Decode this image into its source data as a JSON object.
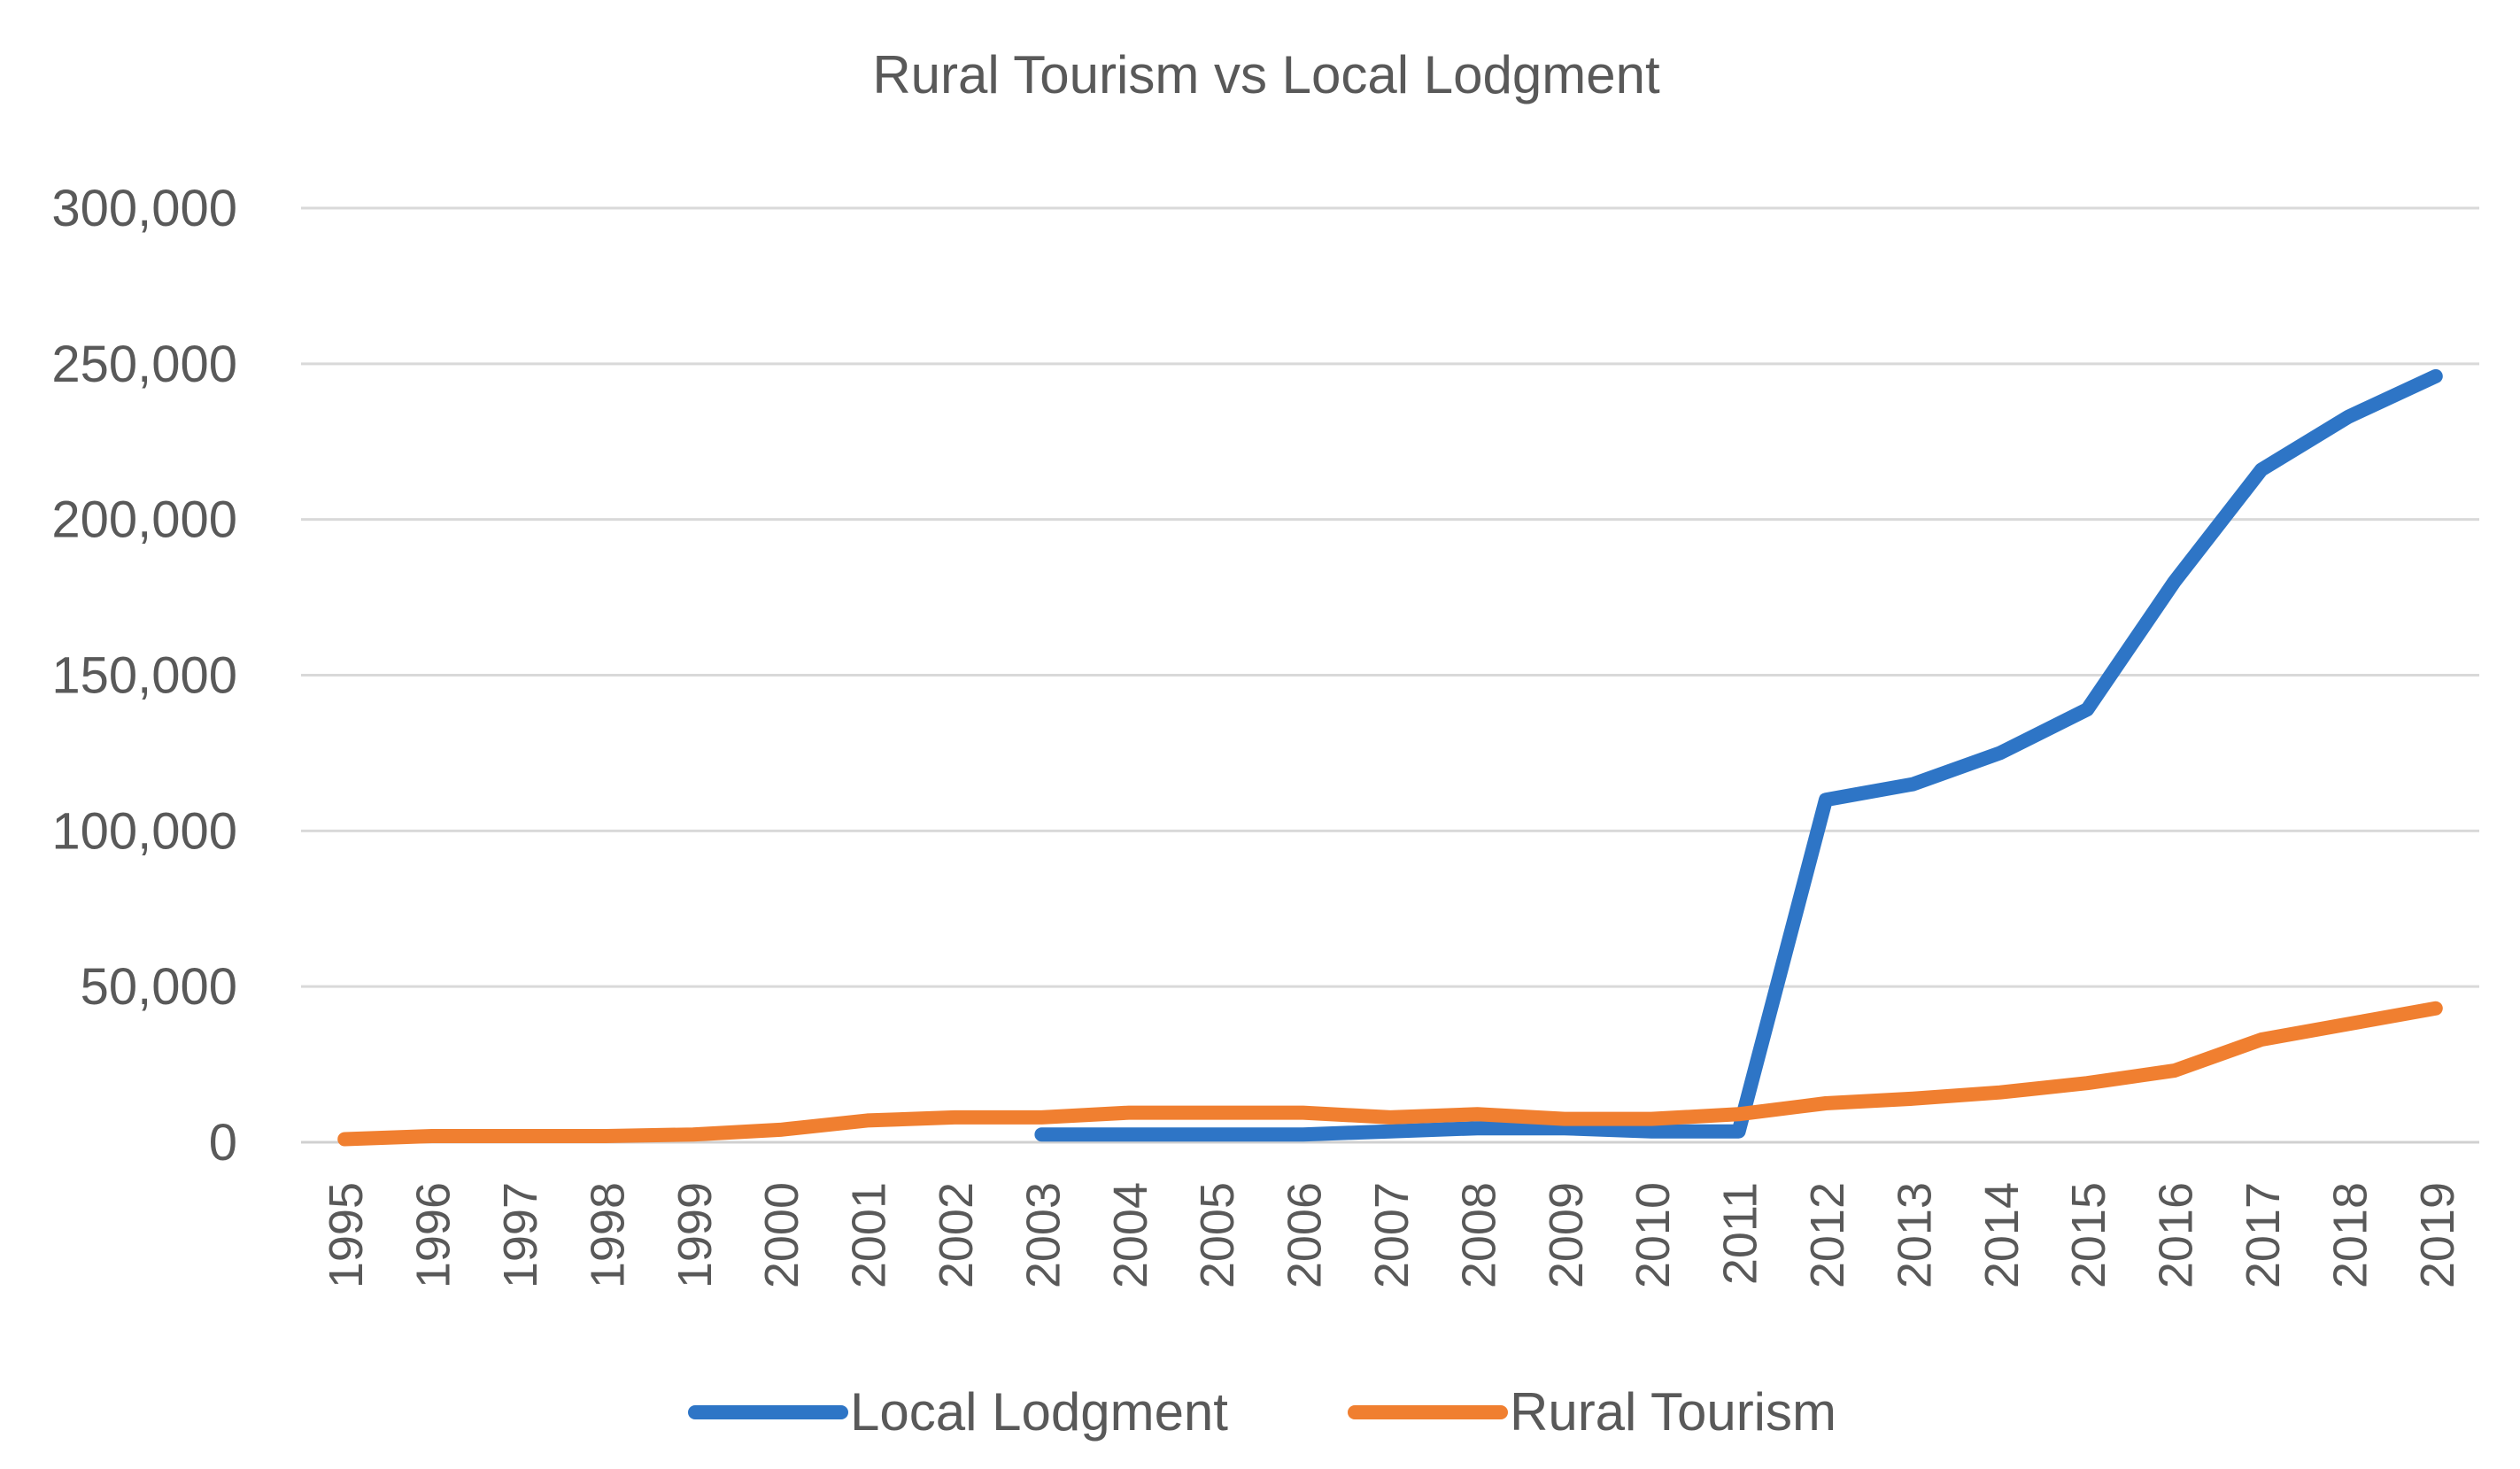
{
  "chart_data": {
    "type": "line",
    "title": "Rural Tourism vs Local Lodgment",
    "xlabel": "",
    "ylabel": "",
    "ylim": [
      0,
      300000
    ],
    "yticks": [
      0,
      50000,
      100000,
      150000,
      200000,
      250000,
      300000
    ],
    "ytick_labels": [
      "0",
      "50,000",
      "100,000",
      "150,000",
      "200,000",
      "250,000",
      "300,000"
    ],
    "grid": true,
    "legend_position": "bottom",
    "categories": [
      "1995",
      "1996",
      "1997",
      "1998",
      "1999",
      "2000",
      "2001",
      "2002",
      "2003",
      "2004",
      "2005",
      "2006",
      "2007",
      "2008",
      "2009",
      "2010",
      "2011",
      "2012",
      "2013",
      "2014",
      "2015",
      "2016",
      "2017",
      "2018",
      "2019"
    ],
    "series": [
      {
        "name": "Local Lodgment",
        "color": "#2e75c6",
        "values": [
          null,
          null,
          null,
          null,
          null,
          null,
          null,
          null,
          2500,
          2500,
          2500,
          2500,
          3500,
          4500,
          4500,
          3500,
          3500,
          110000,
          115000,
          125000,
          139000,
          180000,
          216000,
          233000,
          246000
        ]
      },
      {
        "name": "Rural Tourism",
        "color": "#f07f30",
        "values": [
          1000,
          2000,
          2000,
          2000,
          2500,
          4000,
          7000,
          8000,
          8000,
          9500,
          9500,
          9500,
          8000,
          9000,
          7500,
          7500,
          9000,
          12500,
          14000,
          16000,
          19000,
          23000,
          33000,
          38000,
          43000
        ]
      }
    ]
  }
}
